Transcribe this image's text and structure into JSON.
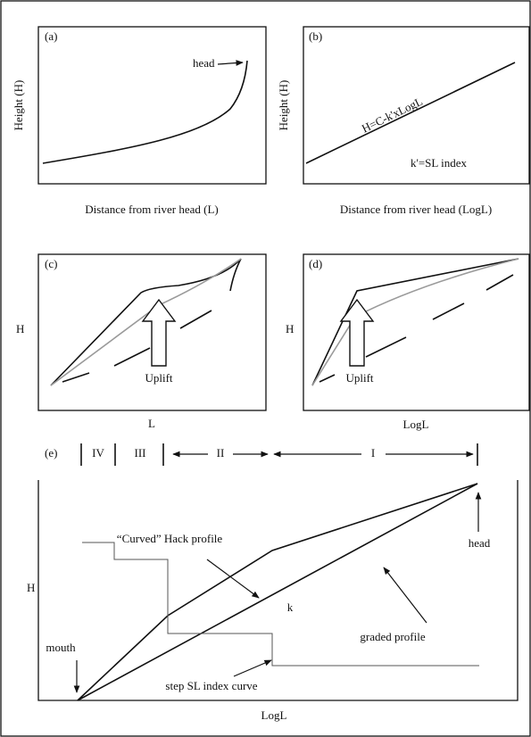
{
  "panel_a": {
    "tag": "(a)",
    "y_label": "Height (H)",
    "x_label": "Distance from river head (L)",
    "head": "head"
  },
  "panel_b": {
    "tag": "(b)",
    "y_label": "Height (H)",
    "x_label": "Distance from river head (LogL)",
    "equation": "H=C-k'xLogL",
    "index": "k'=SL index"
  },
  "panel_c": {
    "tag": "(c)",
    "y_label": "H",
    "x_label": "L",
    "uplift": "Uplift"
  },
  "panel_d": {
    "tag": "(d)",
    "y_label": "H",
    "x_label": "LogL",
    "uplift": "Uplift"
  },
  "panel_e": {
    "tag": "(e)",
    "stages": [
      "IV",
      "III",
      "II",
      "I"
    ],
    "y_label": "H",
    "x_label": "LogL",
    "curved": "“Curved” Hack profile",
    "head": "head",
    "k": "k",
    "graded": "graded profile",
    "mouth": "mouth",
    "step": "step SL index curve"
  }
}
